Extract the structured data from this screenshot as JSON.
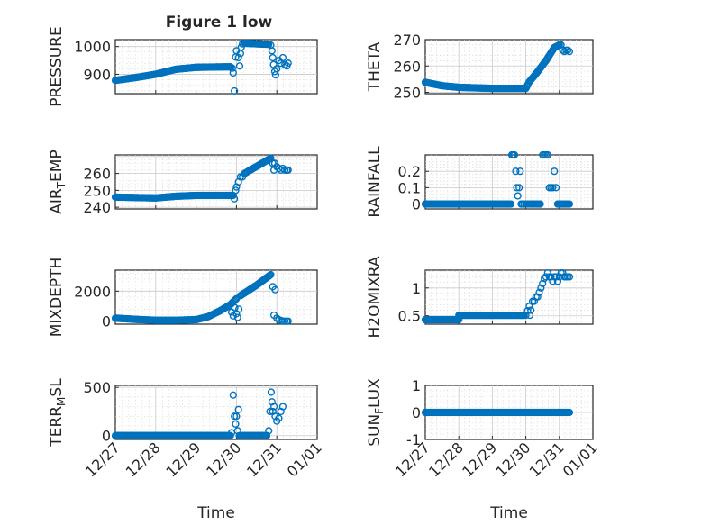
{
  "figure": {
    "title": "Figure 1 low",
    "xlabel": "Time",
    "x_ticks": [
      "12/27",
      "12/28",
      "12/29",
      "12/30",
      "12/31",
      "01/01"
    ],
    "marker_color": "#0072BD"
  },
  "chart_data": [
    {
      "type": "scatter",
      "id": "pressure",
      "title": "Figure 1 low",
      "ylabel": "PRESSURE",
      "ylim": [
        830,
        1025
      ],
      "yticks": [
        900,
        1000
      ],
      "xlim": [
        0,
        5
      ],
      "segments": [
        {
          "x0": 0.0,
          "x1": 2.85,
          "step": 0.025,
          "keys": [
            [
              0,
              878
            ],
            [
              0.5,
              888
            ],
            [
              1,
              900
            ],
            [
              1.5,
              918
            ],
            [
              2,
              925
            ],
            [
              2.85,
              927
            ]
          ]
        },
        {
          "x0": 3.2,
          "x1": 3.8,
          "step": 0.025,
          "keys": [
            [
              3.2,
              1012
            ],
            [
              3.8,
              1008
            ]
          ]
        }
      ],
      "points": [
        [
          2.86,
          925
        ],
        [
          2.9,
          922
        ],
        [
          2.92,
          905
        ],
        [
          2.95,
          840
        ],
        [
          2.98,
          962
        ],
        [
          3.0,
          985
        ],
        [
          3.05,
          960
        ],
        [
          3.08,
          930
        ],
        [
          3.1,
          975
        ],
        [
          3.12,
          998
        ],
        [
          3.15,
          1010
        ],
        [
          3.85,
          1005
        ],
        [
          3.88,
          985
        ],
        [
          3.9,
          960
        ],
        [
          3.92,
          935
        ],
        [
          3.95,
          910
        ],
        [
          3.97,
          898
        ],
        [
          4.0,
          920
        ],
        [
          4.05,
          950
        ],
        [
          4.1,
          940
        ],
        [
          4.15,
          960
        ],
        [
          4.2,
          935
        ],
        [
          4.25,
          930
        ],
        [
          4.28,
          940
        ]
      ]
    },
    {
      "type": "scatter",
      "id": "theta",
      "ylabel": "THETA",
      "ylim": [
        249.5,
        270
      ],
      "yticks": [
        250,
        260,
        270
      ],
      "xlim": [
        0,
        5
      ],
      "segments": [
        {
          "x0": 0.0,
          "x1": 3.0,
          "step": 0.025,
          "keys": [
            [
              0,
              253.8
            ],
            [
              0.5,
              252.5
            ],
            [
              1,
              251.9
            ],
            [
              2,
              251.5
            ],
            [
              3,
              251.5
            ]
          ]
        },
        {
          "x0": 3.0,
          "x1": 4.0,
          "step": 0.025,
          "keys": [
            [
              3.0,
              251.5
            ],
            [
              3.1,
              254
            ],
            [
              3.3,
              257
            ],
            [
              3.6,
              262
            ],
            [
              3.85,
              267
            ],
            [
              4.0,
              268
            ]
          ]
        }
      ],
      "points": [
        [
          4.05,
          268
        ],
        [
          4.1,
          266
        ],
        [
          4.15,
          265.5
        ],
        [
          4.2,
          266
        ],
        [
          4.25,
          266
        ],
        [
          4.3,
          265.5
        ]
      ]
    },
    {
      "type": "scatter",
      "id": "air-temp",
      "ylabel": "AIR_TEMP",
      "ylim": [
        239,
        271
      ],
      "yticks": [
        240,
        250,
        260
      ],
      "xlim": [
        0,
        5
      ],
      "segments": [
        {
          "x0": 0.0,
          "x1": 2.9,
          "step": 0.025,
          "keys": [
            [
              0,
              246
            ],
            [
              1,
              245.5
            ],
            [
              1.5,
              246.5
            ],
            [
              2,
              247
            ],
            [
              2.9,
              247
            ]
          ]
        },
        {
          "x0": 3.2,
          "x1": 3.85,
          "step": 0.025,
          "keys": [
            [
              3.2,
              260
            ],
            [
              3.85,
              269
            ]
          ]
        }
      ],
      "points": [
        [
          2.92,
          247
        ],
        [
          2.95,
          245
        ],
        [
          2.98,
          250
        ],
        [
          3.0,
          252
        ],
        [
          3.05,
          255
        ],
        [
          3.1,
          258
        ],
        [
          3.15,
          258
        ],
        [
          3.9,
          266
        ],
        [
          3.93,
          262
        ],
        [
          3.95,
          266
        ],
        [
          4.0,
          264
        ],
        [
          4.05,
          263
        ],
        [
          4.1,
          262
        ],
        [
          4.15,
          263
        ],
        [
          4.2,
          262
        ],
        [
          4.25,
          262
        ],
        [
          4.28,
          262
        ]
      ]
    },
    {
      "type": "scatter",
      "id": "rainfall",
      "ylabel": "RAINFALL",
      "ylim": [
        -0.03,
        0.3
      ],
      "yticks": [
        0,
        0.1,
        0.2
      ],
      "xlim": [
        0,
        5
      ],
      "segments": [
        {
          "x0": 0.0,
          "x1": 2.55,
          "step": 0.025,
          "keys": [
            [
              0,
              0
            ],
            [
              2.55,
              0
            ]
          ]
        },
        {
          "x0": 3.38,
          "x1": 3.45,
          "step": 0.025,
          "keys": [
            [
              3.38,
              0
            ],
            [
              3.45,
              0
            ]
          ]
        },
        {
          "x0": 3.95,
          "x1": 4.3,
          "step": 0.025,
          "keys": [
            [
              3.95,
              0
            ],
            [
              4.3,
              0
            ]
          ]
        }
      ],
      "points": [
        [
          2.58,
          0.3
        ],
        [
          2.62,
          0.3
        ],
        [
          2.66,
          0.3
        ],
        [
          2.7,
          0.2
        ],
        [
          2.73,
          0.1
        ],
        [
          2.76,
          0.05
        ],
        [
          2.8,
          0.1
        ],
        [
          2.83,
          0.2
        ],
        [
          2.86,
          0
        ],
        [
          2.9,
          0
        ],
        [
          2.95,
          0
        ],
        [
          3.0,
          0
        ],
        [
          3.05,
          0
        ],
        [
          3.1,
          0
        ],
        [
          3.15,
          0
        ],
        [
          3.18,
          0
        ],
        [
          3.2,
          0
        ],
        [
          3.24,
          0
        ],
        [
          3.28,
          0
        ],
        [
          3.32,
          0
        ],
        [
          3.35,
          0
        ],
        [
          3.5,
          0.3
        ],
        [
          3.55,
          0.3
        ],
        [
          3.6,
          0.3
        ],
        [
          3.65,
          0.3
        ],
        [
          3.7,
          0.1
        ],
        [
          3.75,
          0.1
        ],
        [
          3.8,
          0.1
        ],
        [
          3.85,
          0.2
        ],
        [
          3.9,
          0.1
        ]
      ]
    },
    {
      "type": "scatter",
      "id": "mixdepth",
      "ylabel": "MIXDEPTH",
      "ylim": [
        -200,
        3400
      ],
      "yticks": [
        0,
        2000
      ],
      "xlim": [
        0,
        5
      ],
      "segments": [
        {
          "x0": 0.0,
          "x1": 2.0,
          "step": 0.025,
          "keys": [
            [
              0,
              200
            ],
            [
              0.5,
              120
            ],
            [
              1,
              60
            ],
            [
              1.5,
              60
            ],
            [
              2,
              100
            ]
          ]
        },
        {
          "x0": 2.0,
          "x1": 3.0,
          "step": 0.025,
          "keys": [
            [
              2,
              100
            ],
            [
              2.3,
              300
            ],
            [
              2.6,
              700
            ],
            [
              2.85,
              1100
            ],
            [
              3.0,
              1500
            ]
          ]
        },
        {
          "x0": 3.1,
          "x1": 3.85,
          "step": 0.025,
          "keys": [
            [
              3.1,
              1700
            ],
            [
              3.5,
              2400
            ],
            [
              3.85,
              3100
            ]
          ]
        }
      ],
      "points": [
        [
          2.88,
          600
        ],
        [
          2.92,
          350
        ],
        [
          2.96,
          900
        ],
        [
          3.0,
          500
        ],
        [
          3.03,
          250
        ],
        [
          3.06,
          800
        ],
        [
          3.9,
          2300
        ],
        [
          3.93,
          400
        ],
        [
          3.96,
          2100
        ],
        [
          4.0,
          200
        ],
        [
          4.05,
          100
        ],
        [
          4.1,
          50
        ],
        [
          4.15,
          0
        ],
        [
          4.2,
          0
        ],
        [
          4.25,
          0
        ],
        [
          4.28,
          0
        ]
      ]
    },
    {
      "type": "scatter",
      "id": "h2omixra",
      "ylabel": "H2OMIXRA",
      "ylim": [
        0.35,
        1.32
      ],
      "yticks": [
        0.5,
        1
      ],
      "xlim": [
        0,
        5
      ],
      "segments": [
        {
          "x0": 0.0,
          "x1": 1.0,
          "step": 0.025,
          "keys": [
            [
              0,
              0.43
            ],
            [
              1,
              0.43
            ]
          ]
        },
        {
          "x0": 1.0,
          "x1": 2.95,
          "step": 0.025,
          "keys": [
            [
              1,
              0.51
            ],
            [
              2.95,
              0.51
            ]
          ]
        }
      ],
      "points": [
        [
          3.0,
          0.51
        ],
        [
          3.05,
          0.59
        ],
        [
          3.1,
          0.67
        ],
        [
          3.12,
          0.51
        ],
        [
          3.15,
          0.6
        ],
        [
          3.2,
          0.76
        ],
        [
          3.25,
          0.76
        ],
        [
          3.3,
          0.84
        ],
        [
          3.35,
          0.84
        ],
        [
          3.4,
          0.92
        ],
        [
          3.45,
          1.0
        ],
        [
          3.5,
          1.08
        ],
        [
          3.55,
          1.17
        ],
        [
          3.6,
          1.2
        ],
        [
          3.65,
          1.27
        ],
        [
          3.7,
          1.2
        ],
        [
          3.75,
          1.2
        ],
        [
          3.8,
          1.12
        ],
        [
          3.85,
          1.2
        ],
        [
          3.9,
          1.2
        ],
        [
          3.95,
          1.12
        ],
        [
          4.0,
          1.2
        ],
        [
          4.05,
          1.27
        ],
        [
          4.1,
          1.27
        ],
        [
          4.15,
          1.2
        ],
        [
          4.2,
          1.2
        ],
        [
          4.25,
          1.2
        ],
        [
          4.3,
          1.2
        ]
      ]
    },
    {
      "type": "scatter",
      "id": "terr-msl",
      "ylabel": "TERR_MSL",
      "ylim": [
        -40,
        520
      ],
      "yticks": [
        0,
        500
      ],
      "xlim": [
        0,
        5
      ],
      "segments": [
        {
          "x0": 0.0,
          "x1": 2.85,
          "step": 0.025,
          "keys": [
            [
              0,
              0
            ],
            [
              2.85,
              0
            ]
          ]
        },
        {
          "x0": 3.1,
          "x1": 3.75,
          "step": 0.025,
          "keys": [
            [
              3.1,
              0
            ],
            [
              3.75,
              0
            ]
          ]
        }
      ],
      "points": [
        [
          2.88,
          30
        ],
        [
          2.92,
          420
        ],
        [
          2.95,
          200
        ],
        [
          2.98,
          120
        ],
        [
          3.0,
          200
        ],
        [
          3.03,
          50
        ],
        [
          3.05,
          270
        ],
        [
          3.07,
          0
        ],
        [
          3.8,
          50
        ],
        [
          3.83,
          250
        ],
        [
          3.86,
          450
        ],
        [
          3.88,
          350
        ],
        [
          3.9,
          250
        ],
        [
          3.93,
          300
        ],
        [
          3.96,
          200
        ],
        [
          4.0,
          150
        ],
        [
          4.05,
          180
        ],
        [
          4.1,
          250
        ],
        [
          4.15,
          300
        ]
      ]
    },
    {
      "type": "scatter",
      "id": "sun-flux",
      "ylabel": "SUN_FLUX",
      "ylim": [
        -1,
        1
      ],
      "yticks": [
        -1,
        0,
        1
      ],
      "xlim": [
        0,
        5
      ],
      "segments": [
        {
          "x0": 0.0,
          "x1": 4.3,
          "step": 0.025,
          "keys": [
            [
              0,
              0
            ],
            [
              4.3,
              0
            ]
          ]
        }
      ],
      "points": []
    }
  ]
}
